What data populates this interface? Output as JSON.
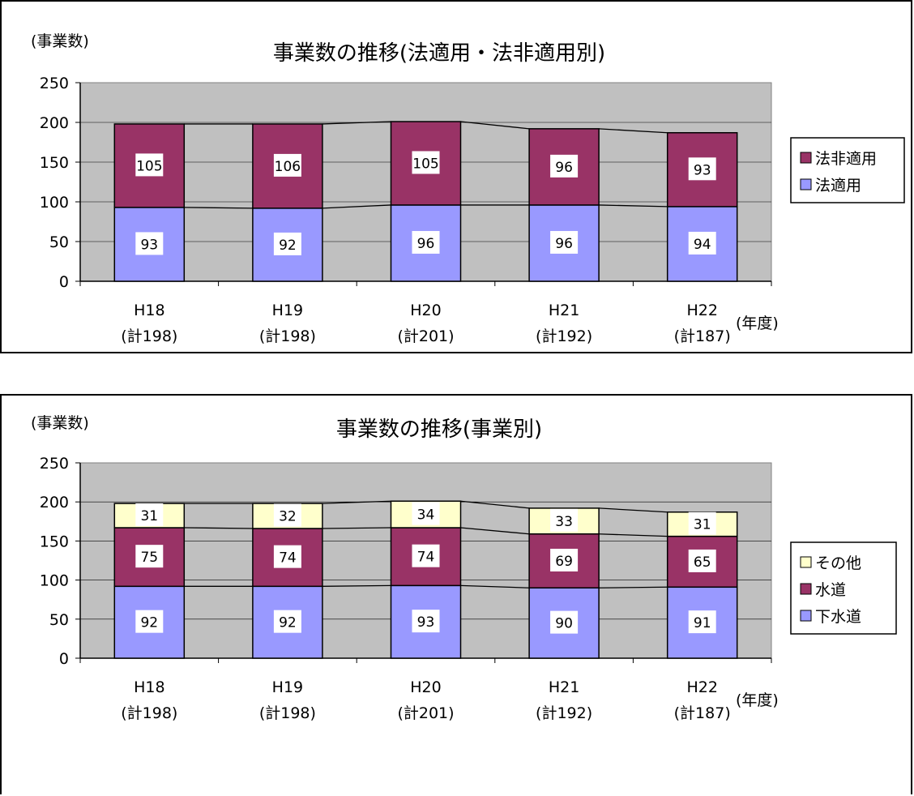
{
  "chart_data": [
    {
      "type": "bar",
      "stacked": true,
      "title": "事業数の推移(法適用・法非適用別)",
      "ylabel": "(事業数)",
      "xlabel": "(年度)",
      "categories": [
        "H18",
        "H19",
        "H20",
        "H21",
        "H22"
      ],
      "category_sublabels": [
        "(計198)",
        "(計198)",
        "(計201)",
        "(計192)",
        "(計187)"
      ],
      "ylim": [
        0,
        250
      ],
      "yticks": [
        0,
        50,
        100,
        150,
        200,
        250
      ],
      "grid": true,
      "legend_position": "right",
      "series": [
        {
          "name": "法適用",
          "values": [
            93,
            92,
            96,
            96,
            94
          ],
          "color": "#9999ff"
        },
        {
          "name": "法非適用",
          "values": [
            105,
            106,
            105,
            96,
            93
          ],
          "color": "#993366"
        }
      ]
    },
    {
      "type": "bar",
      "stacked": true,
      "title": "事業数の推移(事業別)",
      "ylabel": "(事業数)",
      "xlabel": "(年度)",
      "categories": [
        "H18",
        "H19",
        "H20",
        "H21",
        "H22"
      ],
      "category_sublabels": [
        "(計198)",
        "(計198)",
        "(計201)",
        "(計192)",
        "(計187)"
      ],
      "ylim": [
        0,
        250
      ],
      "yticks": [
        0,
        50,
        100,
        150,
        200,
        250
      ],
      "grid": true,
      "legend_position": "right",
      "series": [
        {
          "name": "下水道",
          "values": [
            92,
            92,
            93,
            90,
            91
          ],
          "color": "#9999ff"
        },
        {
          "name": "水道",
          "values": [
            75,
            74,
            74,
            69,
            65
          ],
          "color": "#993366"
        },
        {
          "name": "その他",
          "values": [
            31,
            32,
            34,
            33,
            31
          ],
          "color": "#ffffcc"
        }
      ]
    }
  ],
  "colors": {
    "plot_background": "#c0c0c0",
    "gridline": "#000000"
  }
}
